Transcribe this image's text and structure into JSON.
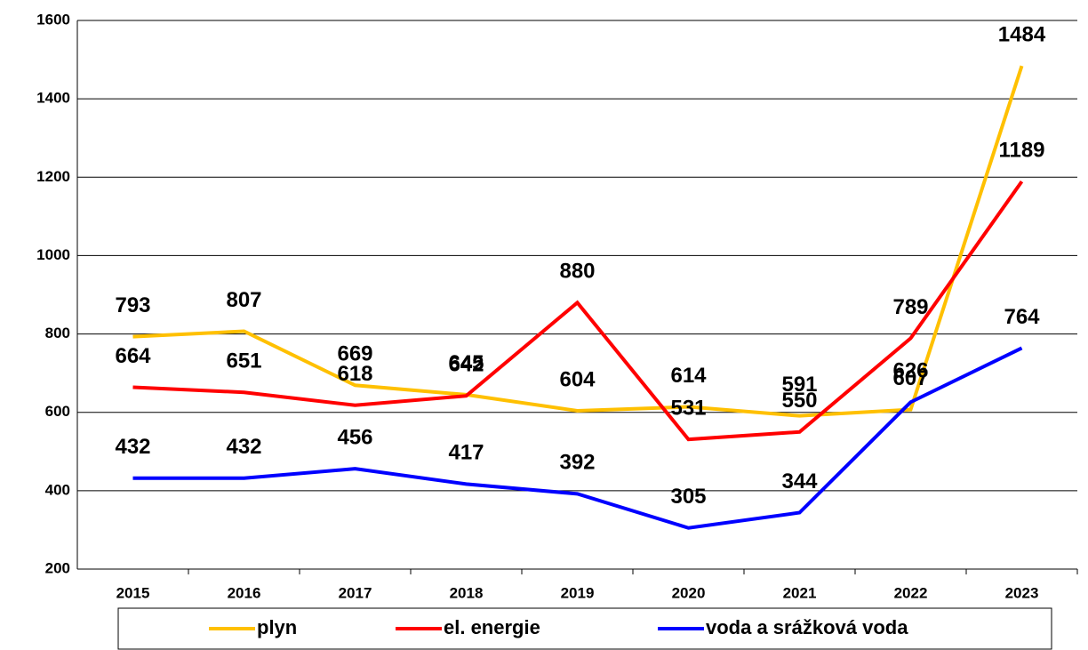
{
  "chart_data": {
    "type": "line",
    "categories": [
      "2015",
      "2016",
      "2017",
      "2018",
      "2019",
      "2020",
      "2021",
      "2022",
      "2023"
    ],
    "series": [
      {
        "name": "plyn",
        "color": "#ffc000",
        "values": [
          793,
          807,
          669,
          645,
          604,
          614,
          591,
          607,
          1484
        ]
      },
      {
        "name": "el. energie",
        "color": "#ff0000",
        "values": [
          664,
          651,
          618,
          642,
          880,
          531,
          550,
          789,
          1189
        ]
      },
      {
        "name": "voda a srážková voda",
        "color": "#0000ff",
        "values": [
          432,
          432,
          456,
          417,
          392,
          305,
          344,
          626,
          764
        ]
      }
    ],
    "ylim": [
      200,
      1600
    ],
    "yticks": [
      200,
      400,
      600,
      800,
      1000,
      1200,
      1400,
      1600
    ],
    "grid": true
  }
}
